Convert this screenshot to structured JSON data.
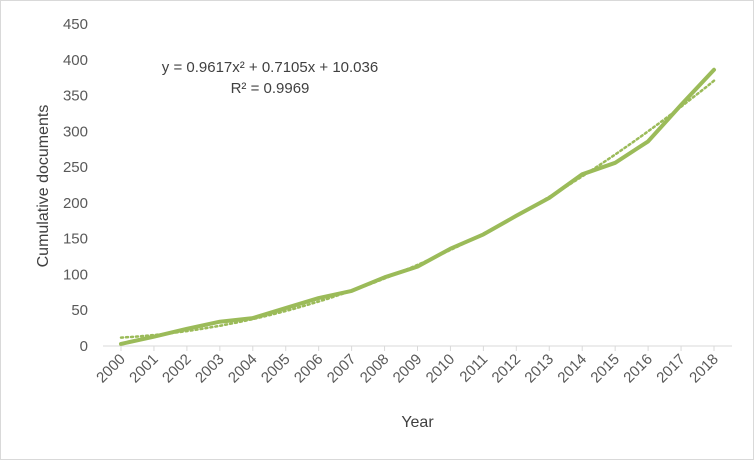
{
  "chart_data": {
    "type": "line",
    "title": "",
    "xlabel": "Year",
    "ylabel": "Cumulative documents",
    "categories": [
      "2000",
      "2001",
      "2002",
      "2003",
      "2004",
      "2005",
      "2006",
      "2007",
      "2008",
      "2009",
      "2010",
      "2011",
      "2012",
      "2013",
      "2014",
      "2015",
      "2016",
      "2017",
      "2018"
    ],
    "ylim": [
      0,
      450
    ],
    "yticks": [
      0,
      50,
      100,
      150,
      200,
      250,
      300,
      350,
      400,
      450
    ],
    "grid": false,
    "legend": "none",
    "series": [
      {
        "values": [
          3,
          13,
          24,
          34,
          39,
          53,
          67,
          77,
          96,
          111,
          136,
          156,
          182,
          207,
          240,
          256,
          286,
          337,
          386
        ],
        "color": "#9bbb59",
        "style": "solid"
      }
    ],
    "trendline": {
      "type": "polynomial",
      "order": 2,
      "coefficients": {
        "a": 0.9617,
        "b": 0.7105,
        "c": 10.036
      },
      "color": "#9bbb59",
      "style": "dotted"
    },
    "annotations": {
      "equation": "y = 0.9617x² + 0.7105x + 10.036",
      "r_squared": "R² = 0.9969"
    }
  }
}
